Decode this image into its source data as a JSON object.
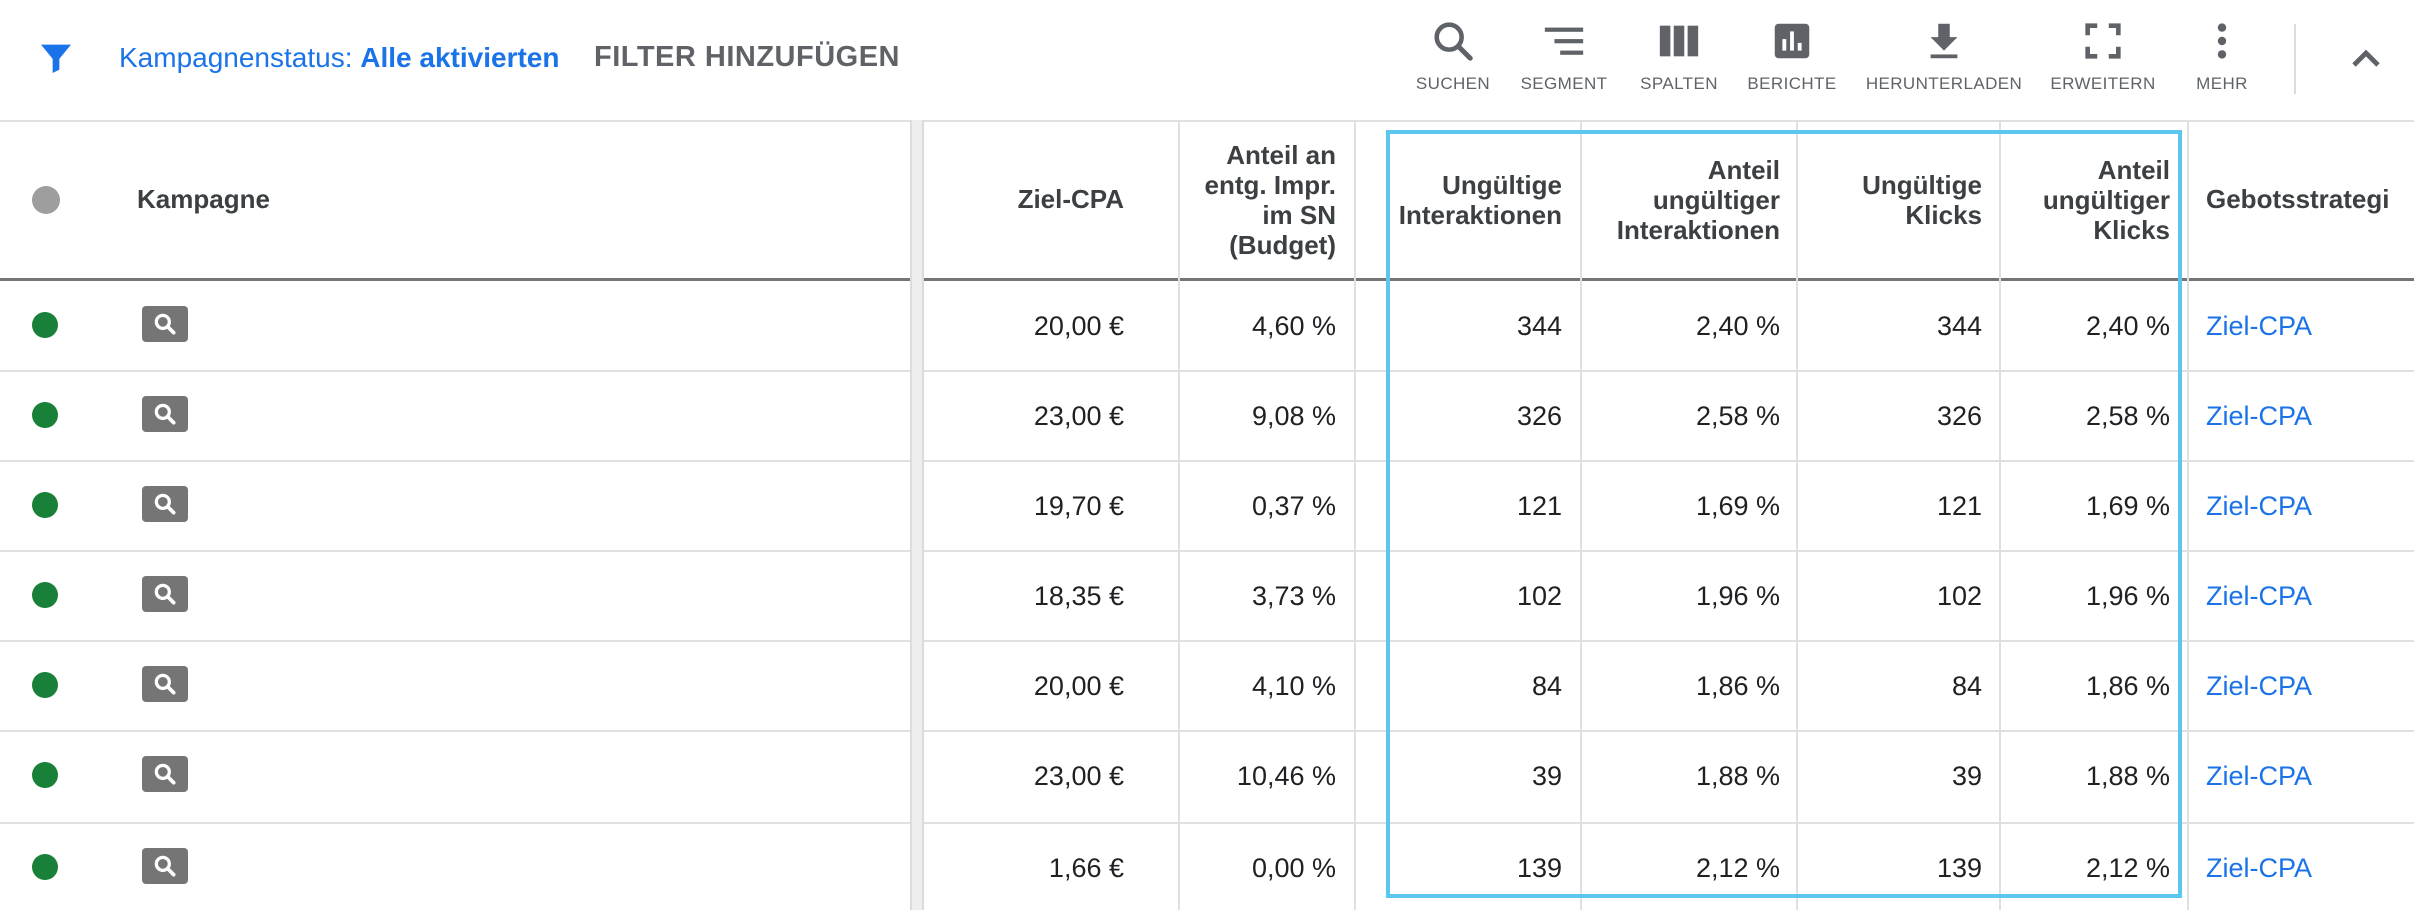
{
  "toolbar": {
    "filter_label": "Kampagnenstatus:",
    "filter_value": "Alle aktivierten",
    "add_filter": "FILTER HINZUFÜGEN",
    "tools": [
      {
        "label": "SUCHEN",
        "icon": "search-icon"
      },
      {
        "label": "SEGMENT",
        "icon": "segment-icon"
      },
      {
        "label": "SPALTEN",
        "icon": "columns-icon"
      },
      {
        "label": "BERICHTE",
        "icon": "reports-icon"
      },
      {
        "label": "HERUNTERLADEN",
        "icon": "download-icon"
      },
      {
        "label": "ERWEITERN",
        "icon": "expand-icon"
      },
      {
        "label": "MEHR",
        "icon": "more-vert-icon"
      }
    ],
    "collapse_icon": "chevron-up-icon"
  },
  "table": {
    "headers": {
      "campaign": "Kampagne",
      "target_cpa": "Ziel-CPA",
      "lost_is_budget": [
        "Anteil an",
        "entg. Impr.",
        "im SN",
        "(Budget)"
      ],
      "invalid_interactions": [
        "Ungültige",
        "Interaktionen"
      ],
      "invalid_interaction_rate": [
        "Anteil",
        "ungültiger",
        "Interaktionen"
      ],
      "invalid_clicks": [
        "Ungültige",
        "Klicks"
      ],
      "invalid_click_rate": [
        "Anteil",
        "ungültiger",
        "Klicks"
      ],
      "bid_strategy": "Gebotsstrategi"
    },
    "rows": [
      {
        "target_cpa": "20,00 €",
        "lost_is_budget": "4,60 %",
        "invalid_interactions": "344",
        "invalid_interaction_rate": "2,40 %",
        "invalid_clicks": "344",
        "invalid_click_rate": "2,40 %",
        "bid_strategy": "Ziel-CPA"
      },
      {
        "target_cpa": "23,00 €",
        "lost_is_budget": "9,08 %",
        "invalid_interactions": "326",
        "invalid_interaction_rate": "2,58 %",
        "invalid_clicks": "326",
        "invalid_click_rate": "2,58 %",
        "bid_strategy": "Ziel-CPA"
      },
      {
        "target_cpa": "19,70 €",
        "lost_is_budget": "0,37 %",
        "invalid_interactions": "121",
        "invalid_interaction_rate": "1,69 %",
        "invalid_clicks": "121",
        "invalid_click_rate": "1,69 %",
        "bid_strategy": "Ziel-CPA"
      },
      {
        "target_cpa": "18,35 €",
        "lost_is_budget": "3,73 %",
        "invalid_interactions": "102",
        "invalid_interaction_rate": "1,96 %",
        "invalid_clicks": "102",
        "invalid_click_rate": "1,96 %",
        "bid_strategy": "Ziel-CPA"
      },
      {
        "target_cpa": "20,00 €",
        "lost_is_budget": "4,10 %",
        "invalid_interactions": "84",
        "invalid_interaction_rate": "1,86 %",
        "invalid_clicks": "84",
        "invalid_click_rate": "1,86 %",
        "bid_strategy": "Ziel-CPA"
      },
      {
        "target_cpa": "23,00 €",
        "lost_is_budget": "10,46 %",
        "invalid_interactions": "39",
        "invalid_interaction_rate": "1,88 %",
        "invalid_clicks": "39",
        "invalid_click_rate": "1,88 %",
        "bid_strategy": "Ziel-CPA"
      },
      {
        "target_cpa": "1,66 €",
        "lost_is_budget": "0,00 %",
        "invalid_interactions": "139",
        "invalid_interaction_rate": "2,12 %",
        "invalid_clicks": "139",
        "invalid_click_rate": "2,12 %",
        "bid_strategy": "Ziel-CPA"
      }
    ],
    "status_color": "#188038",
    "highlight_color": "#5bc7ee",
    "link_color": "#1a73e8"
  }
}
